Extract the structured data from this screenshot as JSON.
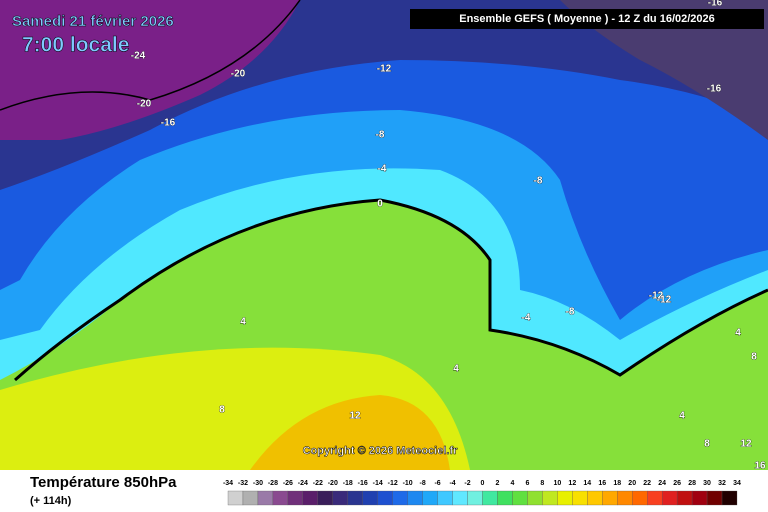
{
  "header": {
    "title": "Samedi 21 février 2026",
    "subtitle": "7:00 locale",
    "run": "Ensemble GEFS  ( Moyenne )  -  12 Z du 16/02/2026"
  },
  "contour_labels": [
    -24,
    -20,
    -20,
    -16,
    -12,
    -8,
    -4,
    0,
    -8,
    -16,
    -16,
    4,
    8,
    12,
    -4,
    -8,
    -12,
    -12,
    4,
    4,
    8,
    4,
    8,
    12,
    16
  ],
  "copyright": "Copyright © 2026 Meteociel.fr",
  "footer": {
    "variable": "Température 850hPa",
    "lead": "(+ 114h)"
  },
  "scale": {
    "values": [
      -34,
      -32,
      -30,
      -28,
      -26,
      -24,
      -22,
      -20,
      -18,
      -16,
      -14,
      -12,
      -10,
      -8,
      -6,
      -4,
      -2,
      0,
      2,
      4,
      6,
      8,
      10,
      12,
      14,
      16,
      18,
      20,
      22,
      24,
      26,
      28,
      30,
      32,
      34
    ],
    "colors": [
      "#d0d0d0",
      "#b0b0b0",
      "#9a7aa8",
      "#8a4a90",
      "#70307a",
      "#5a1e6a",
      "#3a1e5a",
      "#3a2a7a",
      "#2a3590",
      "#2040b0",
      "#1e50d0",
      "#1e6ae8",
      "#1e88f0",
      "#20a8f8",
      "#40c8ff",
      "#60e8ff",
      "#70f0e0",
      "#40e8a0",
      "#40e060",
      "#60e040",
      "#90e030",
      "#c0e820",
      "#e8f000",
      "#f8e000",
      "#ffc800",
      "#ffa800",
      "#ff8800",
      "#ff6800",
      "#f84020",
      "#e02020",
      "#c01010",
      "#a00010",
      "#700000",
      "#200000"
    ]
  }
}
